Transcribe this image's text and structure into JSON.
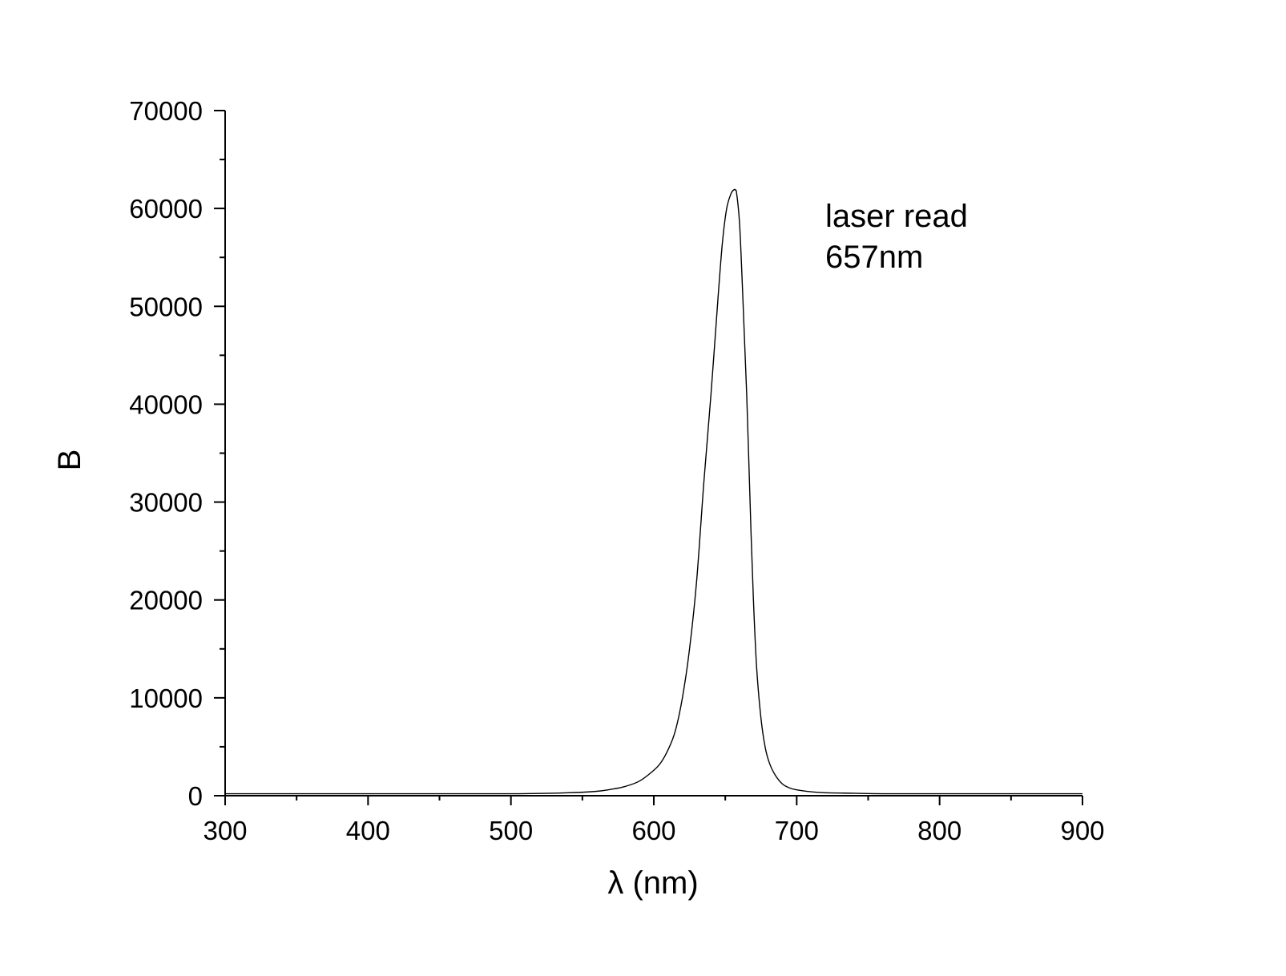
{
  "chart_data": {
    "type": "line",
    "title": "",
    "xlabel": "λ (nm)",
    "ylabel": "B",
    "xlim": [
      300,
      900
    ],
    "ylim": [
      0,
      70000
    ],
    "x_ticks": [
      "300",
      "400",
      "500",
      "600",
      "700",
      "800",
      "900"
    ],
    "y_ticks": [
      "0",
      "10000",
      "20000",
      "30000",
      "40000",
      "50000",
      "60000",
      "70000"
    ],
    "grid": false,
    "legend": "none",
    "line_color": "#000000",
    "annotation": {
      "line1": "laser read",
      "line2": "657nm"
    },
    "series": [
      {
        "x": [
          300,
          400,
          500,
          540,
          560,
          570,
          580,
          590,
          600,
          605,
          610,
          615,
          620,
          625,
          630,
          635,
          640,
          645,
          648,
          651,
          654,
          656,
          657,
          658,
          660,
          662,
          665,
          668,
          670,
          672,
          675,
          678,
          681,
          685,
          690,
          695,
          700,
          710,
          720,
          740,
          760,
          800,
          900
        ],
        "y": [
          200,
          200,
          200,
          300,
          450,
          650,
          950,
          1500,
          2600,
          3400,
          4700,
          6600,
          10000,
          15000,
          22000,
          32000,
          41000,
          51000,
          56500,
          60000,
          61500,
          61900,
          61900,
          61500,
          58500,
          52000,
          41000,
          27000,
          19000,
          13000,
          7900,
          4900,
          3300,
          2100,
          1200,
          800,
          600,
          400,
          300,
          250,
          200,
          200,
          200
        ]
      }
    ]
  }
}
